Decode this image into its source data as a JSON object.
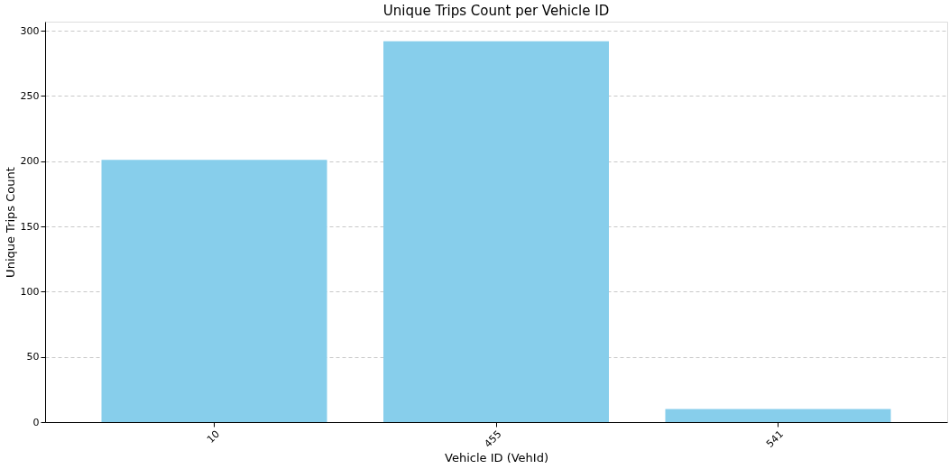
{
  "chart_data": {
    "type": "bar",
    "title": "Unique Trips Count per Vehicle ID",
    "xlabel": "Vehicle ID (VehId)",
    "ylabel": "Unique Trips Count",
    "categories": [
      "10",
      "455",
      "541"
    ],
    "values": [
      201,
      292,
      10
    ],
    "color": "#87ceeb",
    "ylim": [
      0,
      307
    ],
    "yticks": [
      0,
      50,
      100,
      150,
      200,
      250,
      300
    ],
    "grid": "y"
  }
}
